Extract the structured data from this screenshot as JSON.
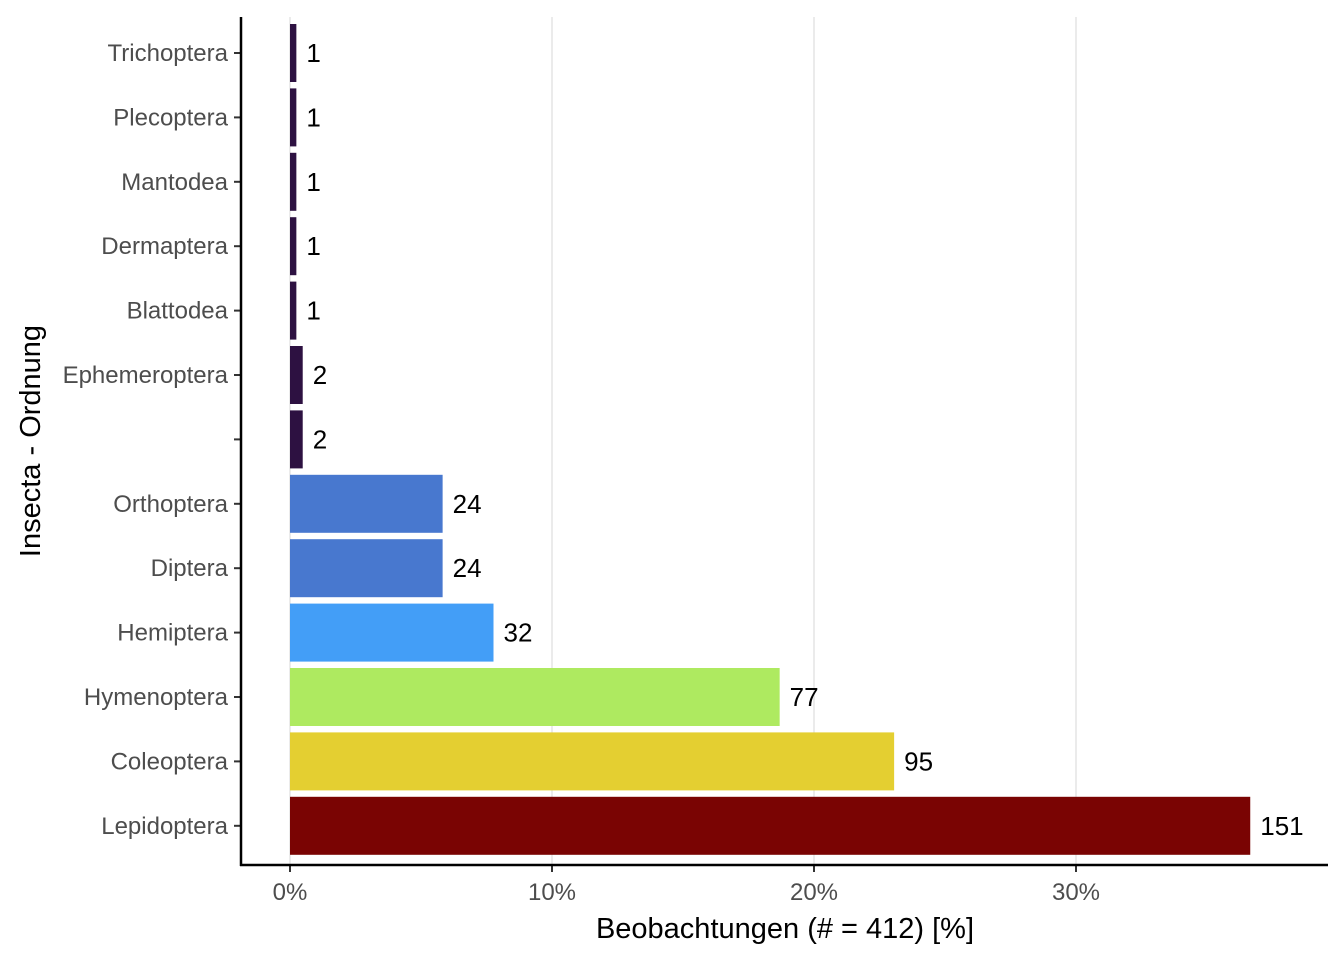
{
  "chart_data": {
    "type": "bar",
    "orientation": "horizontal",
    "total": 412,
    "categories": [
      "Trichoptera",
      "Plecoptera",
      "Mantodea",
      "Dermaptera",
      "Blattodea",
      "Ephemeroptera",
      "",
      "Orthoptera",
      "Diptera",
      "Hemiptera",
      "Hymenoptera",
      "Coleoptera",
      "Lepidoptera"
    ],
    "counts": [
      1,
      1,
      1,
      1,
      1,
      2,
      2,
      24,
      24,
      32,
      77,
      95,
      151
    ],
    "colors": [
      "#2d1141",
      "#2d1141",
      "#2d1141",
      "#2d1141",
      "#2d1141",
      "#2d1141",
      "#2d1141",
      "#4878cf",
      "#4878cf",
      "#439ef7",
      "#aeea60",
      "#e4cf31",
      "#7a0403"
    ],
    "xlabel": "Beobachtungen (# = 412) [%]",
    "ylabel": "Insecta - Ordnung",
    "xlim": [
      0,
      0.37
    ],
    "xticks": [
      0,
      0.1,
      0.2,
      0.3
    ],
    "xtick_labels": [
      "0%",
      "10%",
      "20%",
      "30%"
    ],
    "grid": "vertical major gridlines",
    "legend": "none"
  }
}
